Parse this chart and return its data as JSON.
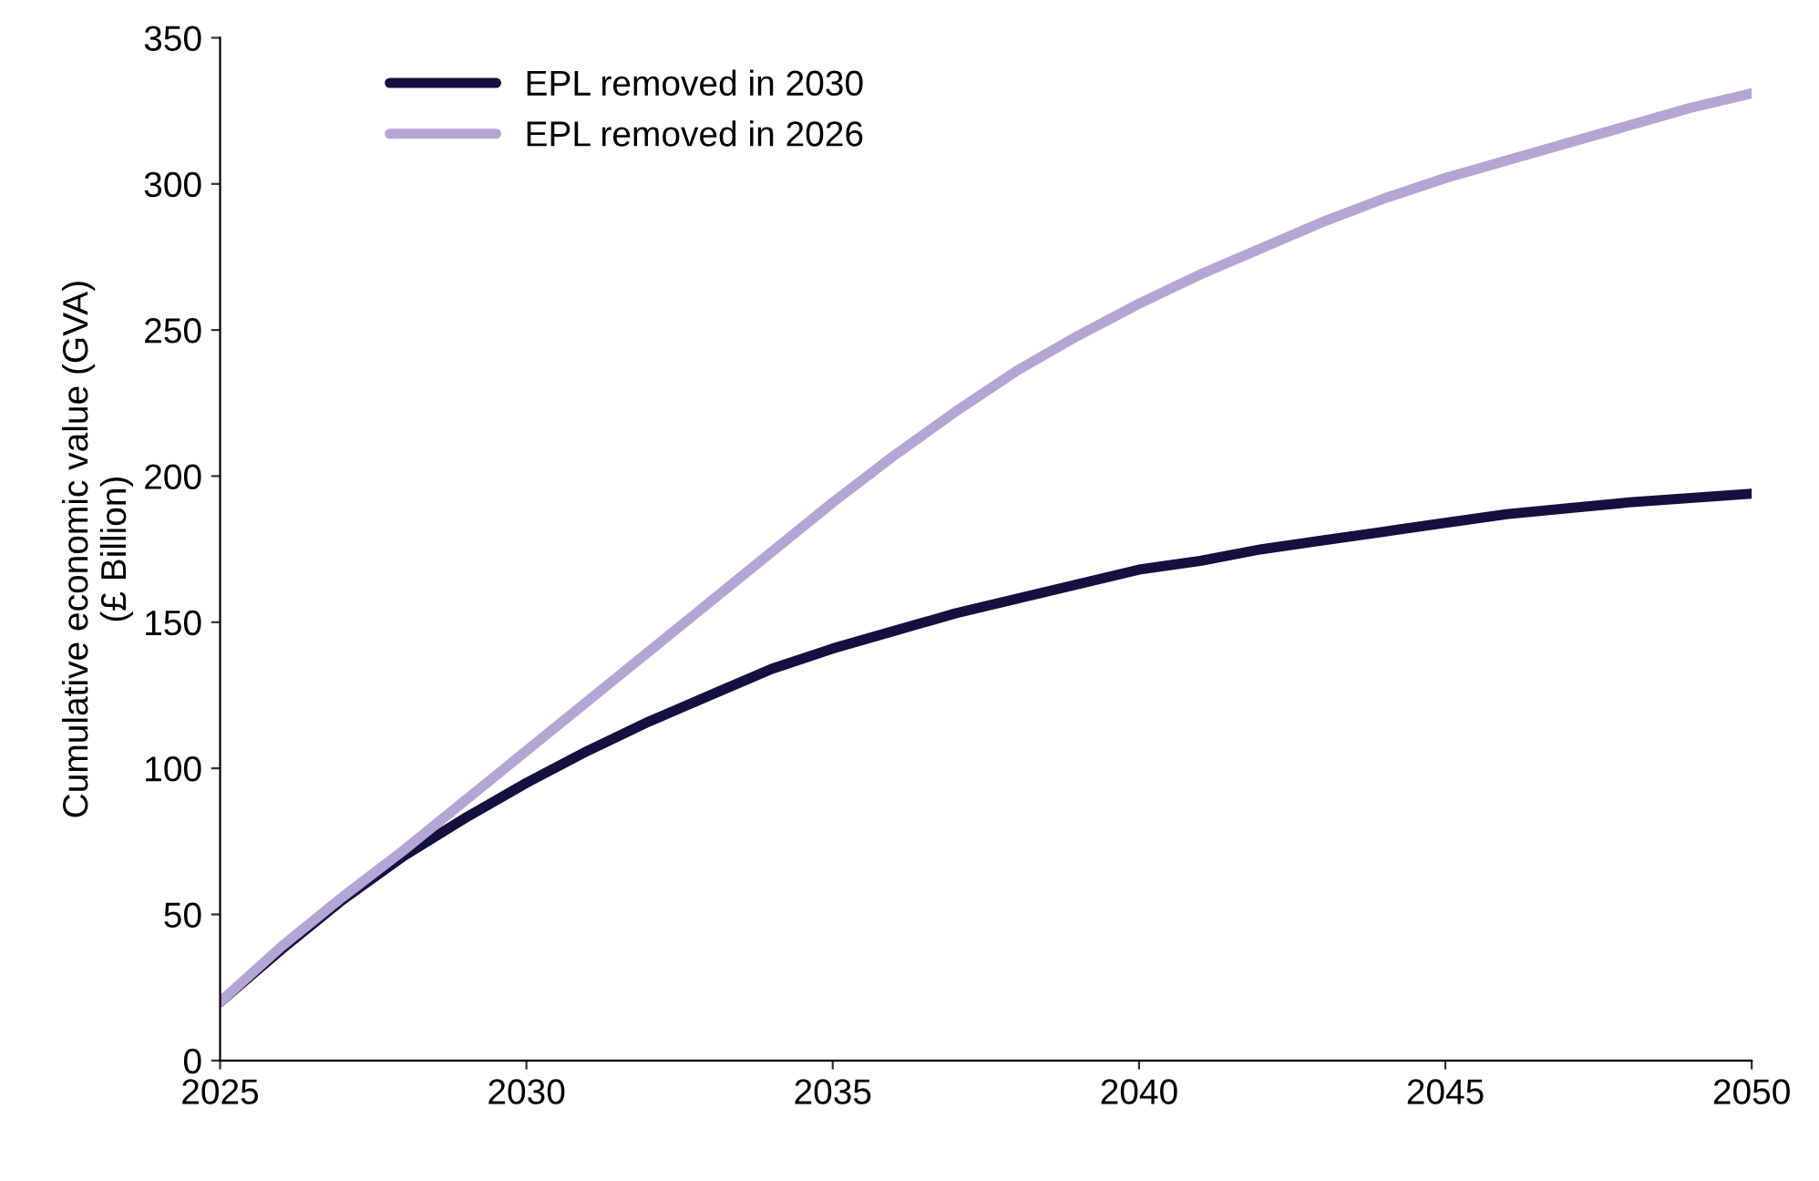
{
  "chart_data": {
    "type": "line",
    "ylabel": "Cumulative economic value (GVA)\n(£ Billion)",
    "x": [
      2025,
      2026,
      2027,
      2028,
      2029,
      2030,
      2031,
      2032,
      2033,
      2034,
      2035,
      2036,
      2037,
      2038,
      2039,
      2040,
      2041,
      2042,
      2043,
      2044,
      2045,
      2046,
      2047,
      2048,
      2049,
      2050
    ],
    "series": [
      {
        "name": "EPL removed in 2030",
        "color": "#14103f",
        "values": [
          20,
          38,
          55,
          70,
          83,
          95,
          106,
          116,
          125,
          134,
          141,
          147,
          153,
          158,
          163,
          168,
          171,
          175,
          178,
          181,
          184,
          187,
          189,
          191,
          192.5,
          194
        ]
      },
      {
        "name": "EPL removed in 2026",
        "color": "#b4a6d4",
        "values": [
          20,
          39,
          56,
          72,
          89,
          106,
          123,
          140,
          157,
          174,
          191,
          207,
          222,
          236,
          248,
          259,
          269,
          278,
          287,
          295,
          302,
          308,
          314,
          320,
          326,
          331
        ]
      }
    ],
    "xlim": [
      2025,
      2050
    ],
    "xticks": [
      2025,
      2030,
      2035,
      2040,
      2045,
      2050
    ],
    "ylim": [
      0,
      350
    ],
    "yticks": [
      0,
      50,
      100,
      150,
      200,
      250,
      300,
      350
    ],
    "grid": false,
    "legend": "top left",
    "marker": "none",
    "line_style": "solid"
  }
}
